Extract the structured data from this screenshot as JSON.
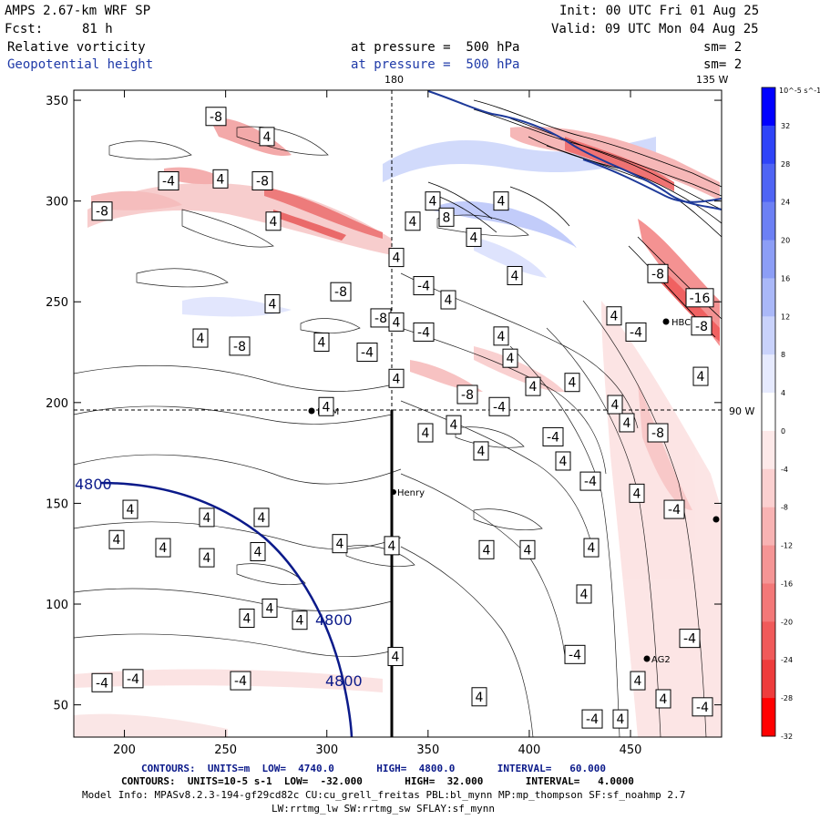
{
  "header": {
    "model": "AMPS 2.67-km WRF SP",
    "init": "Init: 00 UTC Fri 01 Aug 25",
    "fcst_label": "Fcst:",
    "fcst_value": "81 h",
    "valid": "Valid: 09 UTC Mon 04 Aug 25",
    "field1": "Relative vorticity",
    "field1_level": "at pressure =  500 hPa",
    "field1_sm": "sm= 2",
    "field2": "Geopotential height",
    "field2_level": "at pressure =  500 hPa",
    "field2_sm": "sm= 2"
  },
  "map_labels": {
    "lon_180": "180",
    "lon_135w": "135 W",
    "lon_90w": "90 W",
    "station_henry": "Henry",
    "station_ag2": "AG2",
    "station_hbc": "HBC",
    "station_mcm": "MCM"
  },
  "axes": {
    "x_ticks": [
      200,
      250,
      300,
      350,
      400,
      450
    ],
    "y_ticks": [
      50,
      100,
      150,
      200,
      250,
      300,
      350
    ],
    "x_range": [
      175,
      495
    ],
    "y_range": [
      34,
      355
    ]
  },
  "height_contours": {
    "values": [
      "4800",
      "4800",
      "4800"
    ]
  },
  "vorticity_labels": [
    {
      "v": "-8",
      "x": 237,
      "y": 342
    },
    {
      "v": "4",
      "x": 293,
      "y": 332
    },
    {
      "v": "-4",
      "x": 185,
      "y": 310
    },
    {
      "v": "4",
      "x": 242,
      "y": 311
    },
    {
      "v": "-8",
      "x": 288,
      "y": 310
    },
    {
      "v": "4",
      "x": 300,
      "y": 290
    },
    {
      "v": "-8",
      "x": 112,
      "y": 295
    },
    {
      "v": "4",
      "x": 299,
      "y": 249
    },
    {
      "v": "4",
      "x": 220,
      "y": 232
    },
    {
      "v": "-8",
      "x": 263,
      "y": 228
    },
    {
      "v": "-8",
      "x": 374,
      "y": 255
    },
    {
      "v": "-8",
      "x": 418,
      "y": 242
    },
    {
      "v": "4",
      "x": 353,
      "y": 230
    },
    {
      "v": "-4",
      "x": 403,
      "y": 225
    },
    {
      "v": "4",
      "x": 435,
      "y": 212
    },
    {
      "v": "4",
      "x": 435,
      "y": 240
    },
    {
      "v": "-4",
      "x": 465,
      "y": 235
    },
    {
      "v": "4",
      "x": 358,
      "y": 198
    },
    {
      "v": "4",
      "x": 482,
      "y": 8
    },
    {
      "v": "4",
      "x": 475,
      "y": 300
    },
    {
      "v": "4",
      "x": 453,
      "y": 290
    },
    {
      "v": "8",
      "x": 490,
      "y": 292
    },
    {
      "v": "4",
      "x": 435,
      "y": 272
    },
    {
      "v": "-4",
      "x": 465,
      "y": 258
    },
    {
      "v": "4",
      "x": 492,
      "y": 251
    },
    {
      "v": "4",
      "x": 520,
      "y": 282
    },
    {
      "v": "4",
      "x": 550,
      "y": 300
    },
    {
      "v": "4",
      "x": 565,
      "y": 263
    },
    {
      "v": "4",
      "x": 550,
      "y": 233
    },
    {
      "v": "4",
      "x": 560,
      "y": 222
    },
    {
      "v": "4",
      "x": 585,
      "y": 208
    },
    {
      "v": "4",
      "x": 628,
      "y": 210
    },
    {
      "v": "-8",
      "x": 513,
      "y": 204
    },
    {
      "v": "-4",
      "x": 548,
      "y": 198
    },
    {
      "v": "4",
      "x": 674,
      "y": 243
    },
    {
      "v": "4",
      "x": 675,
      "y": 199
    },
    {
      "v": "-4",
      "x": 698,
      "y": 235
    },
    {
      "v": "4",
      "x": 769,
      "y": 213
    },
    {
      "v": "-8",
      "x": 722,
      "y": 264
    },
    {
      "v": "-16",
      "x": 768,
      "y": 252
    },
    {
      "v": "-8",
      "x": 770,
      "y": 238
    },
    {
      "v": "4",
      "x": 688,
      "y": 190
    },
    {
      "v": "-8",
      "x": 722,
      "y": 185
    },
    {
      "v": "4",
      "x": 467,
      "y": 185
    },
    {
      "v": "4",
      "x": 498,
      "y": 189
    },
    {
      "v": "4",
      "x": 528,
      "y": 176
    },
    {
      "v": "-4",
      "x": 607,
      "y": 183
    },
    {
      "v": "4",
      "x": 618,
      "y": 171
    },
    {
      "v": "-4",
      "x": 648,
      "y": 161
    },
    {
      "v": "4",
      "x": 699,
      "y": 155
    },
    {
      "v": "-4",
      "x": 740,
      "y": 147
    },
    {
      "v": "4",
      "x": 143,
      "y": 147
    },
    {
      "v": "4",
      "x": 227,
      "y": 143
    },
    {
      "v": "4",
      "x": 287,
      "y": 143
    },
    {
      "v": "4",
      "x": 128,
      "y": 132
    },
    {
      "v": "4",
      "x": 179,
      "y": 128
    },
    {
      "v": "4",
      "x": 227,
      "y": 123
    },
    {
      "v": "4",
      "x": 283,
      "y": 126
    },
    {
      "v": "4",
      "x": 373,
      "y": 130
    },
    {
      "v": "4",
      "x": 430,
      "y": 129
    },
    {
      "v": "4",
      "x": 534,
      "y": 127
    },
    {
      "v": "4",
      "x": 579,
      "y": 127
    },
    {
      "v": "4",
      "x": 649,
      "y": 128
    },
    {
      "v": "4",
      "x": 296,
      "y": 98
    },
    {
      "v": "4",
      "x": 271,
      "y": 93
    },
    {
      "v": "4",
      "x": 329,
      "y": 92
    },
    {
      "v": "4",
      "x": 641,
      "y": 105
    },
    {
      "v": "-4",
      "x": 757,
      "y": 83
    },
    {
      "v": "-4",
      "x": 631,
      "y": 75
    },
    {
      "v": "4",
      "x": 434,
      "y": 74
    },
    {
      "v": "-4",
      "x": 112,
      "y": 61
    },
    {
      "v": "-4",
      "x": 146,
      "y": 63
    },
    {
      "v": "-4",
      "x": 264,
      "y": 62
    },
    {
      "v": "4",
      "x": 526,
      "y": 54
    },
    {
      "v": "4",
      "x": 700,
      "y": 62
    },
    {
      "v": "4",
      "x": 728,
      "y": 53
    },
    {
      "v": "-4",
      "x": 771,
      "y": 49
    },
    {
      "v": "-4",
      "x": 650,
      "y": 43
    },
    {
      "v": "4",
      "x": 681,
      "y": 43
    }
  ],
  "colorbar": {
    "unit": "10^-5 s^-1",
    "ticks": [
      "32",
      "28",
      "24",
      "20",
      "16",
      "12",
      "8",
      "4",
      "0",
      "-4",
      "-8",
      "-12",
      "-16",
      "-20",
      "-24",
      "-28",
      "-32"
    ],
    "colors": [
      "#0000ff",
      "#2f44f8",
      "#4f64f4",
      "#6c80f4",
      "#8c9ef6",
      "#aab8f8",
      "#c9d2fb",
      "#e6eafe",
      "#ffffff",
      "#fde9e9",
      "#fbd0d0",
      "#f8b3b3",
      "#f59595",
      "#f37878",
      "#f05a5a",
      "#ee3c3c",
      "#ff0000"
    ]
  },
  "footer": {
    "line1": "CONTOURS:  UNITS=m  LOW=  4740.0       HIGH=  4800.0       INTERVAL=   60.000",
    "line2": "CONTOURS:  UNITS=10-5 s-1  LOW=  -32.000       HIGH=  32.000       INTERVAL=   4.0000",
    "line3": "Model Info: MPASv8.2.3-194-gf29cd82c CU:cu_grell_freitas PBL:bl_mynn MP:mp_thompson SF:sf_noahmp 2.7",
    "line4": "LW:rrtmg_lw SW:rrtmg_sw SFLAY:sf_mynn"
  }
}
